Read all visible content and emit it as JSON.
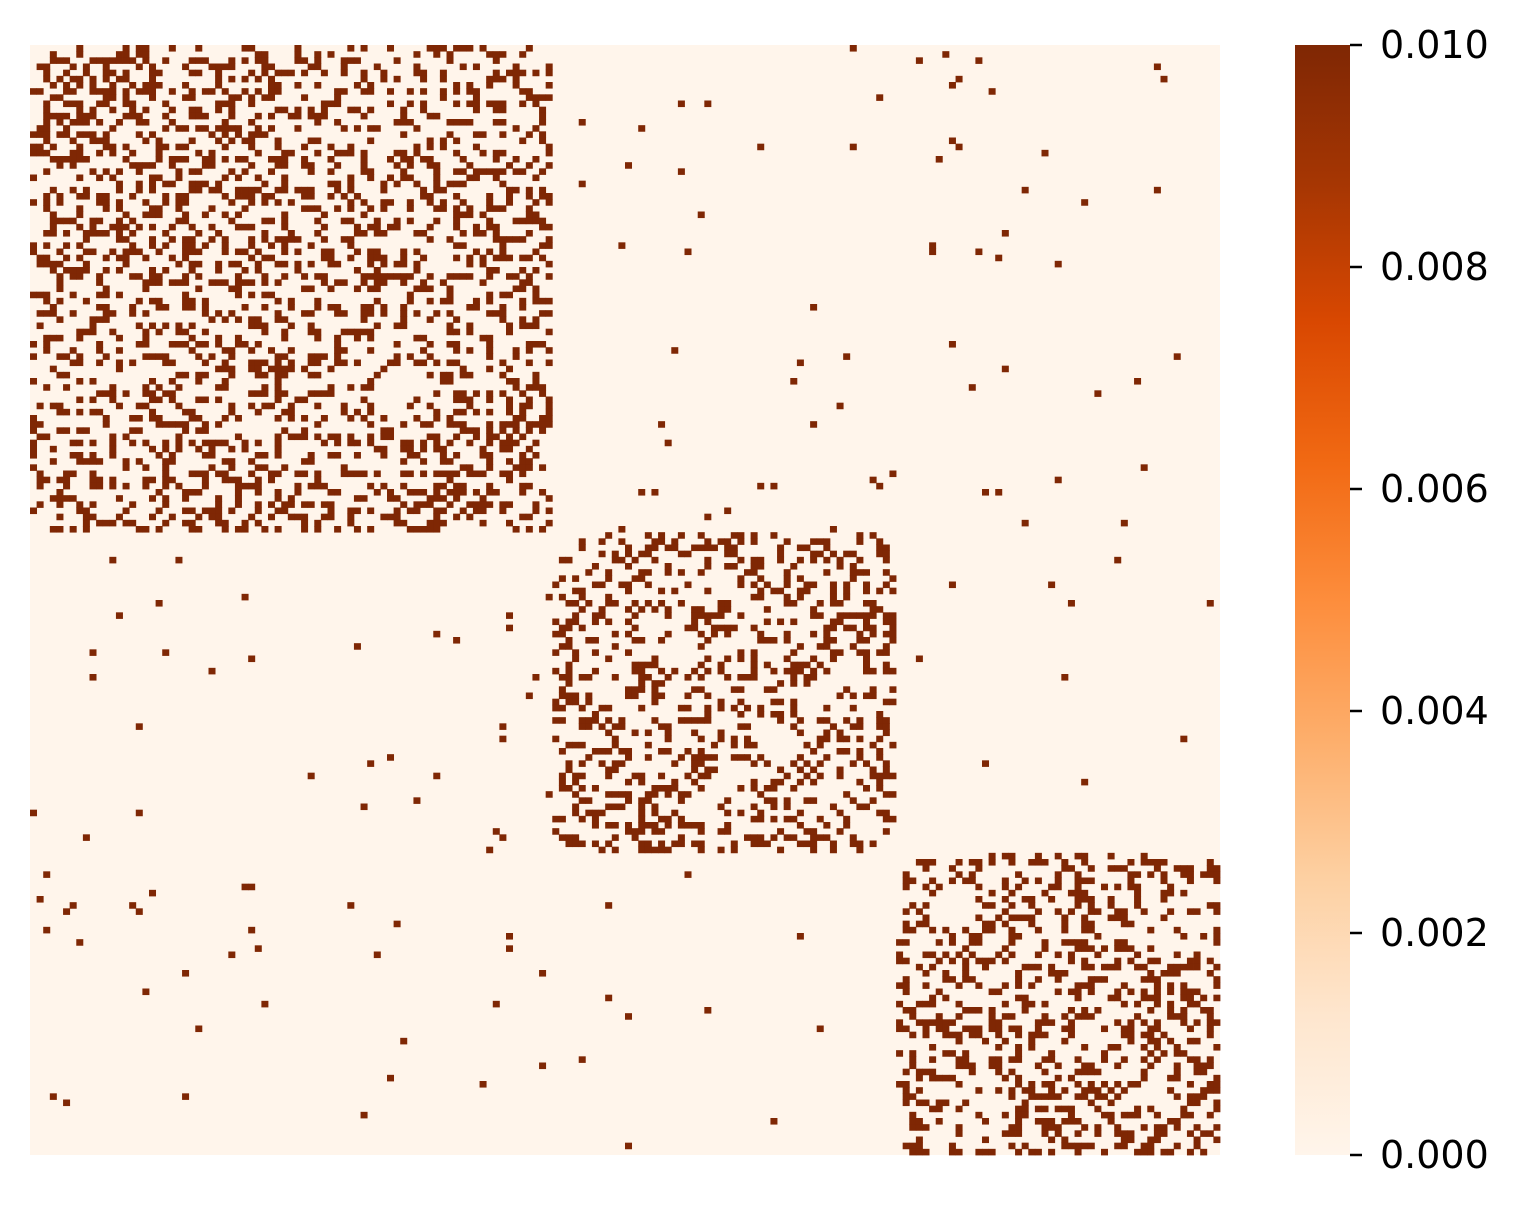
{
  "chart_data": {
    "type": "heatmap",
    "title": "",
    "xlabel": "",
    "ylabel": "",
    "matrix_size": 180,
    "background_value": 0.0,
    "edge_value": 0.01,
    "cluster_sizes": [
      79,
      52,
      49
    ],
    "description_of_values": "binary adjacency-style matrix: cells are either 0.000 or 0.010; three dense diagonal blocks with sparse off-diagonal entries",
    "colorbar": {
      "vmin": 0.0,
      "vmax": 0.01,
      "ticks": [
        "0.000",
        "0.002",
        "0.004",
        "0.006",
        "0.008",
        "0.010"
      ],
      "colormap": "Oranges",
      "low_color": "#fff5eb",
      "high_color": "#7f2704"
    },
    "block_density_within": 0.3,
    "block_density_between": 0.006,
    "grid": false,
    "axis_ticks_visible": false
  }
}
